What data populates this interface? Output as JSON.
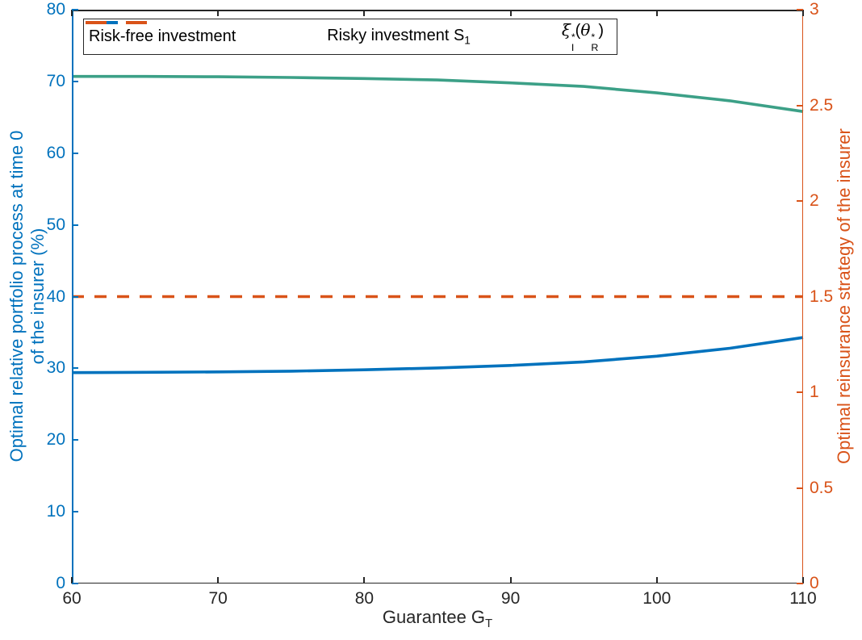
{
  "figure": {
    "background": "#ffffff",
    "axes_color": "#262626"
  },
  "chart_data": {
    "type": "line",
    "x": [
      60,
      65,
      70,
      75,
      80,
      85,
      90,
      95,
      100,
      105,
      110
    ],
    "xlim": [
      60,
      110
    ],
    "x_ticks": [
      60,
      70,
      80,
      90,
      100,
      110
    ],
    "xlabel_segments": [
      {
        "t": "Guarantee G"
      },
      {
        "sub": "T"
      }
    ],
    "grid": false,
    "left_axis": {
      "label_lines": [
        "Optimal relative portfolio process at time 0",
        "of the insurer (%)"
      ],
      "lim": [
        0,
        80
      ],
      "ticks": [
        0,
        10,
        20,
        30,
        40,
        50,
        60,
        70,
        80
      ],
      "color": "#0072BD"
    },
    "right_axis": {
      "label": "Optimal reinsurance strategy of the insurer",
      "lim": [
        0,
        3
      ],
      "ticks": [
        0,
        0.5,
        1,
        1.5,
        2,
        2.5,
        3
      ],
      "color": "#D95319"
    },
    "series": [
      {
        "name": "Risk-free investment",
        "axis": "left",
        "color": "#3CA087",
        "style": "solid",
        "values": [
          70.7,
          70.7,
          70.65,
          70.55,
          70.4,
          70.2,
          69.8,
          69.3,
          68.4,
          67.3,
          65.8
        ]
      },
      {
        "name": "Risky investment S_1",
        "axis": "left",
        "color": "#0072BD",
        "style": "solid",
        "values": [
          29.4,
          29.45,
          29.5,
          29.6,
          29.8,
          30.05,
          30.4,
          30.9,
          31.7,
          32.8,
          34.3
        ]
      },
      {
        "name": "xi_I*(theta_R*) reinsurance strategy",
        "axis": "right",
        "color": "#D95319",
        "style": "dashed",
        "values": [
          1.5,
          1.5,
          1.5,
          1.5,
          1.5,
          1.5,
          1.5,
          1.5,
          1.5,
          1.5,
          1.5
        ]
      }
    ],
    "legend": {
      "position": "north",
      "entries": [
        {
          "key": "risk-free-investment",
          "color": "#3CA087",
          "style": "solid",
          "label_segments": [
            {
              "t": "Risk-free investment"
            }
          ]
        },
        {
          "key": "risky-investment",
          "color": "#0072BD",
          "style": "solid",
          "label_segments": [
            {
              "t": "Risky investment S"
            },
            {
              "sub": "1"
            }
          ]
        },
        {
          "key": "reinsurance-strategy",
          "color": "#D95319",
          "style": "dashed",
          "label_segments": [
            {
              "g": "ξ"
            },
            {
              "stack": {
                "sup": "*",
                "sub": "I"
              }
            },
            {
              "t": "("
            },
            {
              "g": "θ"
            },
            {
              "stack": {
                "sup": "*",
                "sub": "R"
              }
            },
            {
              "t": ")"
            }
          ]
        }
      ]
    }
  }
}
